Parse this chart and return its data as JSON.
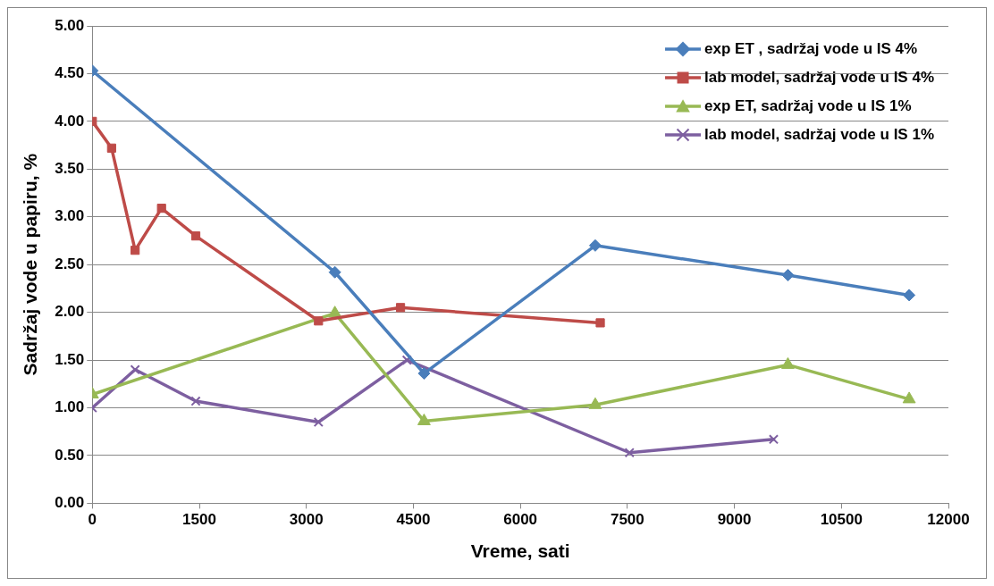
{
  "chart_data": {
    "type": "line",
    "xlabel": "Vreme, sati",
    "ylabel": "Sadržaj vode u papiru, %",
    "xlim": [
      0,
      12000
    ],
    "xticks": [
      0,
      1500,
      3000,
      4500,
      6000,
      7500,
      9000,
      10500,
      12000
    ],
    "ylim": [
      0,
      5
    ],
    "yticks": [
      {
        "value": 0,
        "label": "0.00"
      },
      {
        "value": 0.5,
        "label": "0.50"
      },
      {
        "value": 1,
        "label": "1.00"
      },
      {
        "value": 1.5,
        "label": "1.50"
      },
      {
        "value": 2,
        "label": "2.00"
      },
      {
        "value": 2.5,
        "label": "2.50"
      },
      {
        "value": 3,
        "label": "3.00"
      },
      {
        "value": 3.5,
        "label": "3.50"
      },
      {
        "value": 4,
        "label": "4.00"
      },
      {
        "value": 4.5,
        "label": "4.50"
      },
      {
        "value": 5,
        "label": "5.00"
      }
    ],
    "grid": "y",
    "legend": "top right",
    "line_style": "solid",
    "series": [
      {
        "name": "exp ET , sadržaj vode u IS 4%",
        "color": "#4a7ebb",
        "marker": "diamond",
        "x": [
          0,
          3400,
          4650,
          7050,
          9750,
          11450
        ],
        "values": [
          4.53,
          2.42,
          1.36,
          2.7,
          2.39,
          2.18
        ]
      },
      {
        "name": "lab model, sadržaj vode u IS 4%",
        "color": "#be4b48",
        "marker": "square",
        "x": [
          0,
          270,
          600,
          970,
          1450,
          3170,
          4320,
          7120
        ],
        "values": [
          4,
          3.72,
          2.65,
          3.09,
          2.8,
          1.91,
          2.05,
          1.89
        ]
      },
      {
        "name": "exp ET, sadržaj vode u IS 1%",
        "color": "#98b954",
        "marker": "triangle",
        "x": [
          0,
          3400,
          4650,
          7050,
          9750,
          11450
        ],
        "values": [
          1.14,
          1.99,
          0.86,
          1.03,
          1.45,
          1.09
        ]
      },
      {
        "name": "lab model, sadržaj vode u IS 1%",
        "color": "#7d5fa0",
        "marker": "cross",
        "x": [
          0,
          600,
          1450,
          3170,
          4410,
          7530,
          9550
        ],
        "values": [
          1,
          1.4,
          1.07,
          0.85,
          1.5,
          0.53,
          0.67
        ]
      }
    ]
  }
}
